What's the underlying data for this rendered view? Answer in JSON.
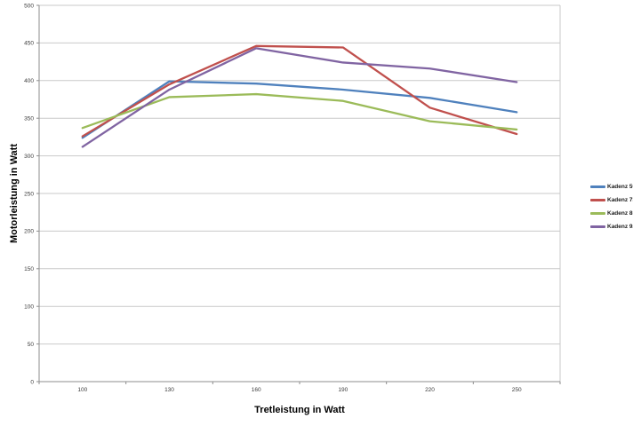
{
  "chart_data": {
    "type": "line",
    "title": "",
    "xlabel": "Tretleistung in Watt",
    "ylabel": "Motorleistung in Watt",
    "categories": [
      100,
      130,
      160,
      190,
      220,
      250
    ],
    "series": [
      {
        "name": "Kadenz 59",
        "color": "#4F81BD",
        "values": [
          324,
          399,
          396,
          388,
          377,
          358
        ]
      },
      {
        "name": "Kadenz 73",
        "color": "#C0504D",
        "values": [
          326,
          395,
          446,
          444,
          364,
          329
        ]
      },
      {
        "name": "Kadenz 85",
        "color": "#9BBB59",
        "values": [
          337,
          378,
          382,
          373,
          346,
          335
        ]
      },
      {
        "name": "Kadenz 92",
        "color": "#8064A2",
        "values": [
          312,
          388,
          443,
          424,
          416,
          398
        ]
      }
    ],
    "ylim": [
      0,
      500
    ],
    "y_tick_step": 50,
    "y_tick_labels": [
      "0",
      "50",
      "100",
      "150",
      "200",
      "250",
      "300",
      "350",
      "400",
      "450",
      "500"
    ],
    "x_tick_labels": [
      "100",
      "130",
      "160",
      "190",
      "220",
      "250"
    ],
    "grid": "horizontal",
    "legend_position": "right",
    "legend_entries": [
      "Kadenz 59",
      "Kadenz 73",
      "Kadenz 85",
      "Kadenz 92"
    ]
  },
  "colors": {
    "gridline": "#C9C9C9",
    "axis": "#8E8E8E",
    "tick_label": "#3A3A3A",
    "background": "#FFFFFF"
  }
}
